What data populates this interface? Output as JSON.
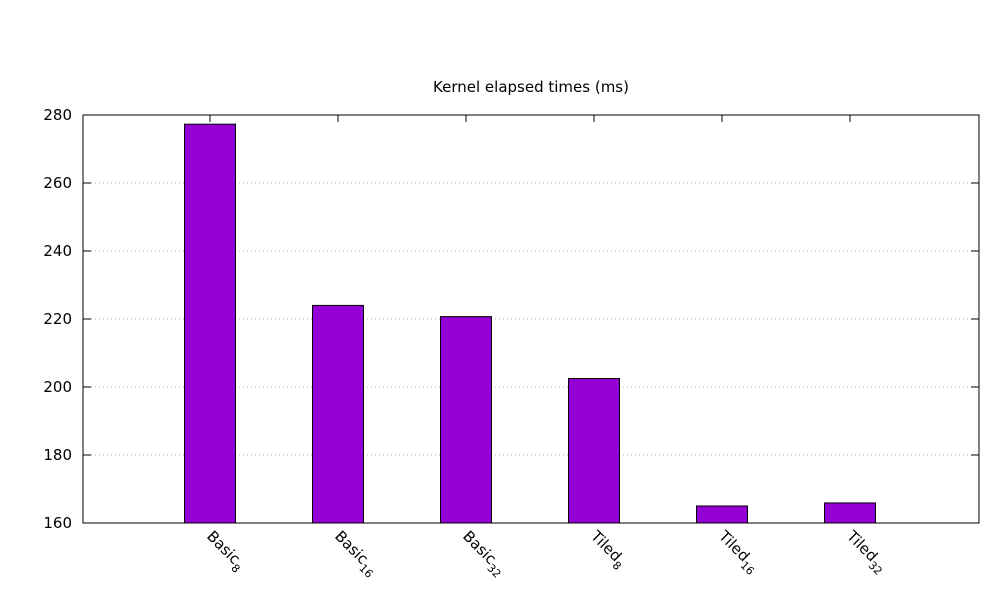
{
  "chart_data": {
    "type": "bar",
    "title": "Kernel elapsed times (ms)",
    "xlabel": "",
    "ylabel": "",
    "ylim": [
      160,
      280
    ],
    "yticks": [
      160,
      180,
      200,
      220,
      240,
      260,
      280
    ],
    "grid": "horizontal dotted",
    "categories": [
      {
        "base": "Basic",
        "sub": "8"
      },
      {
        "base": "Basic",
        "sub": "16"
      },
      {
        "base": "Basic",
        "sub": "32"
      },
      {
        "base": "Tiled",
        "sub": "8"
      },
      {
        "base": "Tiled",
        "sub": "16"
      },
      {
        "base": "Tiled",
        "sub": "32"
      }
    ],
    "values": [
      277.3,
      224.0,
      220.7,
      202.5,
      165.0,
      165.9
    ],
    "bar_color": "#9400d3"
  }
}
